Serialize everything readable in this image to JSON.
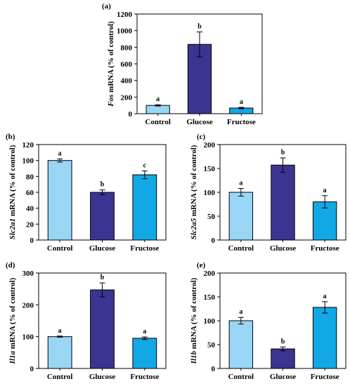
{
  "colors": {
    "control": "#99d6f5",
    "glucose": "#3b3591",
    "fructose": "#12a8e6",
    "stroke": "#000000"
  },
  "chart_data": [
    {
      "type": "bar",
      "panel": "(a)",
      "gene": "Fos",
      "ylabel_rest": " mRNA (% of control)",
      "categories": [
        "Control",
        "Glucose",
        "Fructose"
      ],
      "values": [
        100,
        835,
        68
      ],
      "errors": [
        8,
        150,
        8
      ],
      "significance": [
        "a",
        "b",
        "a"
      ],
      "ylim": [
        0,
        1200
      ],
      "yticks": [
        0,
        200,
        400,
        600,
        800,
        1000,
        1200
      ]
    },
    {
      "type": "bar",
      "panel": "(b)",
      "gene": "Slc2a1",
      "ylabel_rest": " mRNA (% of control)",
      "categories": [
        "Control",
        "Glucose",
        "Fructose"
      ],
      "values": [
        100,
        60,
        82
      ],
      "errors": [
        2,
        3,
        5
      ],
      "significance": [
        "a",
        "b",
        "c"
      ],
      "ylim": [
        0,
        120
      ],
      "yticks": [
        0,
        20,
        40,
        60,
        80,
        100,
        120
      ]
    },
    {
      "type": "bar",
      "panel": "(c)",
      "gene": "Slc2a5",
      "ylabel_rest": " mRNA (% of control)",
      "categories": [
        "Control",
        "Glucose",
        "Fructose"
      ],
      "values": [
        100,
        157,
        80
      ],
      "errors": [
        8,
        15,
        13
      ],
      "significance": [
        "a",
        "b",
        "a"
      ],
      "ylim": [
        0,
        200
      ],
      "yticks": [
        0,
        50,
        100,
        150,
        200
      ]
    },
    {
      "type": "bar",
      "panel": "(d)",
      "gene": "Il1a",
      "ylabel_rest": " mRNA (% of control)",
      "categories": [
        "Control",
        "Glucose",
        "Fructose"
      ],
      "values": [
        100,
        247,
        95
      ],
      "errors": [
        2,
        22,
        4
      ],
      "significance": [
        "a",
        "b",
        "a"
      ],
      "ylim": [
        0,
        300
      ],
      "yticks": [
        0,
        100,
        200,
        300
      ]
    },
    {
      "type": "bar",
      "panel": "(e)",
      "gene": "Il1b",
      "ylabel_rest": " mRNA (% of control)",
      "categories": [
        "Control",
        "Glucose",
        "Fructose"
      ],
      "values": [
        100,
        41,
        128
      ],
      "errors": [
        7,
        4,
        12
      ],
      "significance": [
        "a",
        "b",
        "a"
      ],
      "ylim": [
        0,
        200
      ],
      "yticks": [
        0,
        50,
        100,
        150,
        200
      ]
    }
  ]
}
